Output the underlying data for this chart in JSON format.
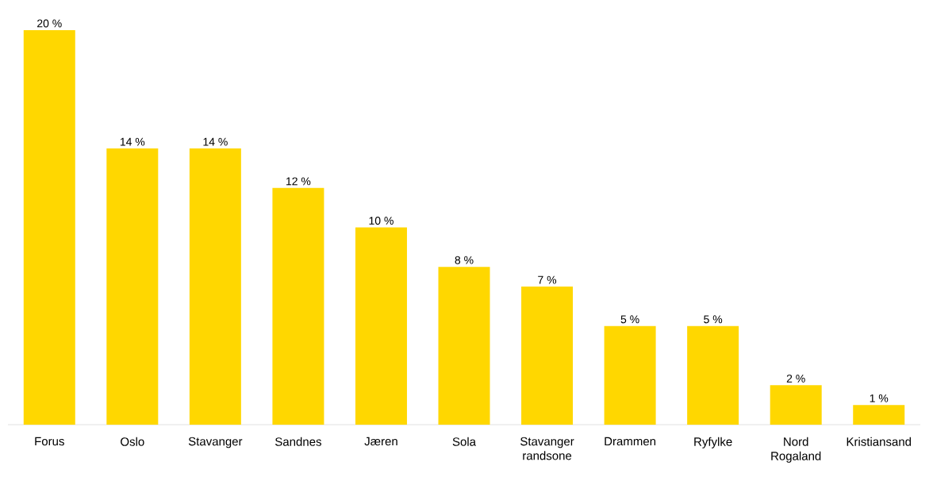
{
  "chart_data": {
    "type": "bar",
    "categories": [
      "Forus",
      "Oslo",
      "Stavanger",
      "Sandnes",
      "Jæren",
      "Sola",
      "Stavanger randsone",
      "Drammen",
      "Ryfylke",
      "Nord Rogaland",
      "Kristiansand"
    ],
    "values": [
      20,
      14,
      14,
      12,
      10,
      8,
      7,
      5,
      5,
      2,
      1
    ],
    "value_labels": [
      "20 %",
      "14 %",
      "14 %",
      "12 %",
      "10 %",
      "8 %",
      "7 %",
      "5 %",
      "5 %",
      "2 %",
      "1 %"
    ],
    "color": "#ffd700"
  }
}
